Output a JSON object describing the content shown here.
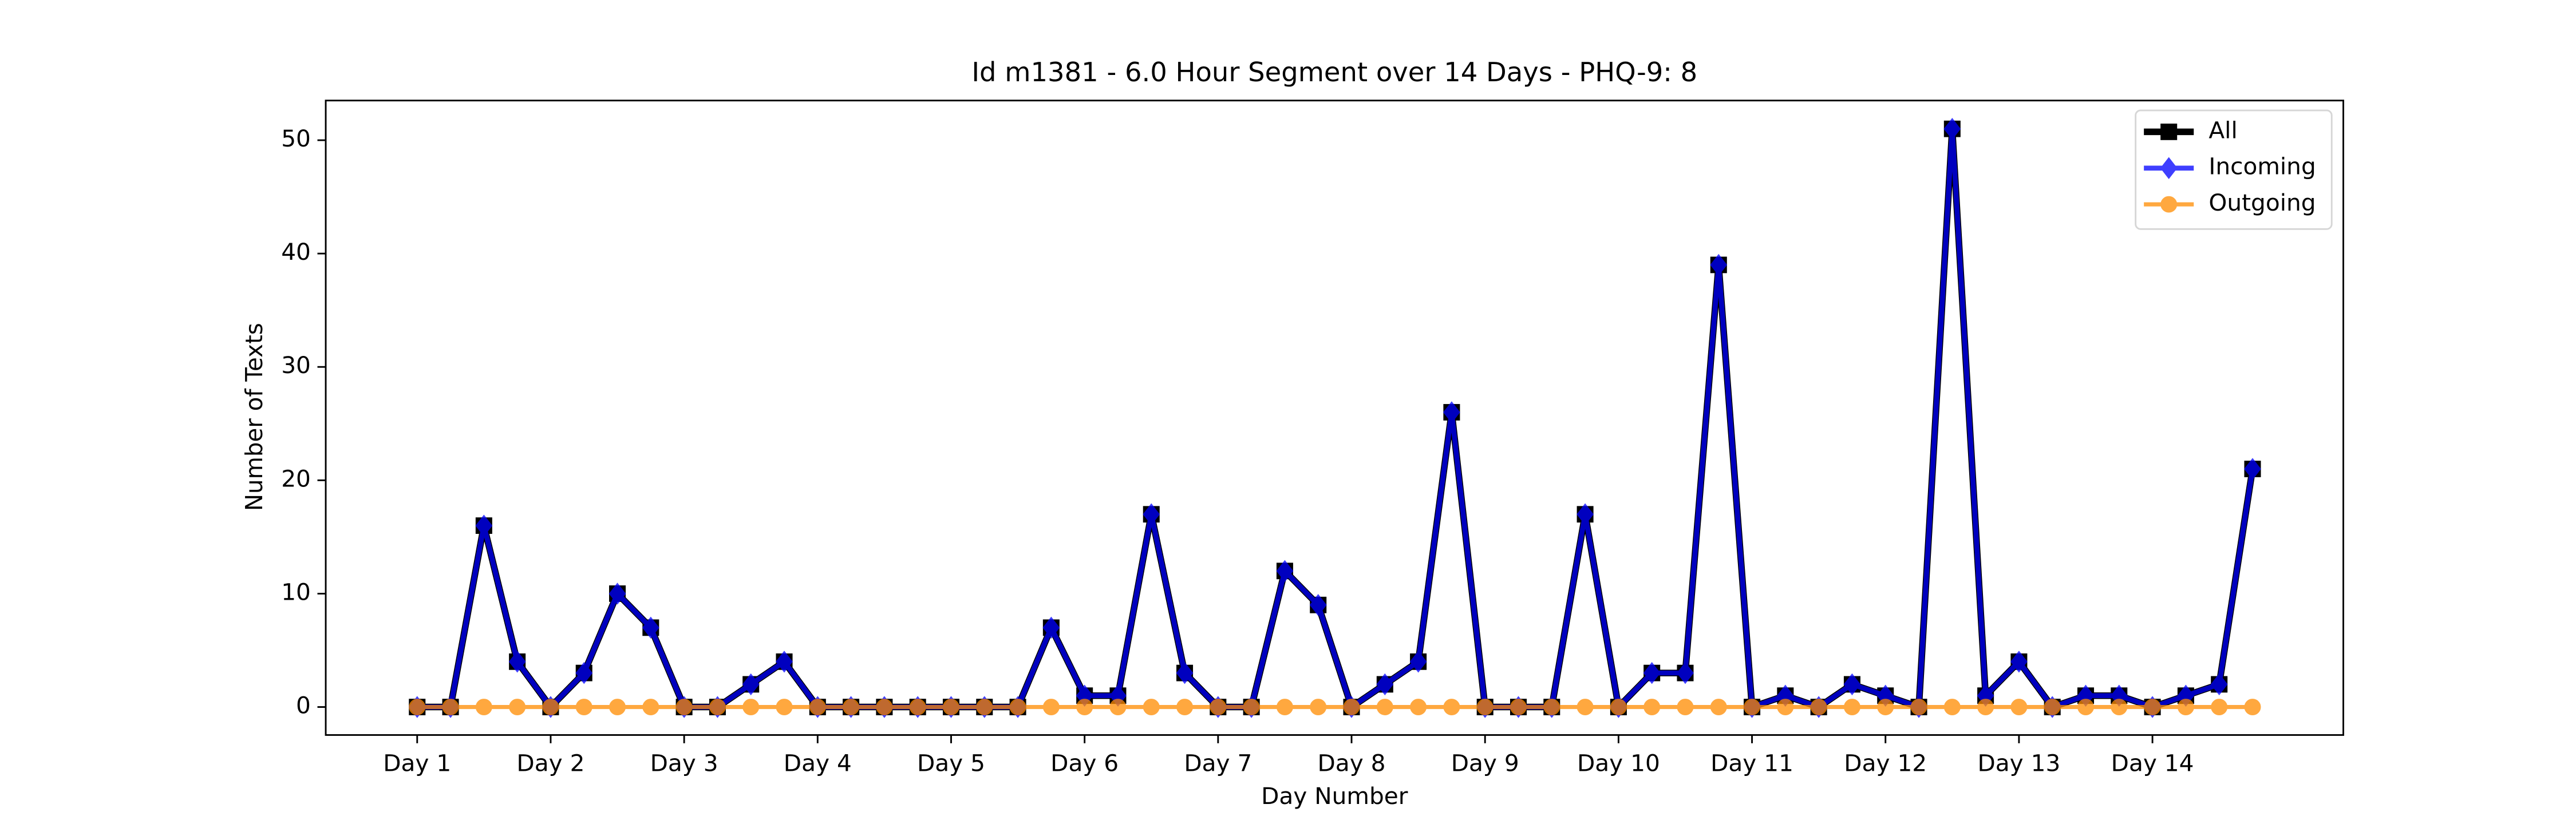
{
  "chart_data": {
    "type": "line",
    "title": "Id m1381 - 6.0 Hour Segment over 14 Days - PHQ-9: 8",
    "xlabel": "Day Number",
    "ylabel": "Number of Texts",
    "x": [
      0,
      0.25,
      0.5,
      0.75,
      1,
      1.25,
      1.5,
      1.75,
      2,
      2.25,
      2.5,
      2.75,
      3,
      3.25,
      3.5,
      3.75,
      4,
      4.25,
      4.5,
      4.75,
      5,
      5.25,
      5.5,
      5.75,
      6,
      6.25,
      6.5,
      6.75,
      7,
      7.25,
      7.5,
      7.75,
      8,
      8.25,
      8.5,
      8.75,
      9,
      9.25,
      9.5,
      9.75,
      10,
      10.25,
      10.5,
      10.75,
      11,
      11.25,
      11.5,
      11.75,
      12,
      12.25,
      12.5,
      12.75,
      13,
      13.25,
      13.5,
      13.75
    ],
    "series": [
      {
        "name": "All",
        "color": "#000000",
        "marker": "square",
        "values": [
          0,
          0,
          16,
          4,
          0,
          3,
          10,
          7,
          0,
          0,
          2,
          4,
          0,
          0,
          0,
          0,
          0,
          0,
          0,
          7,
          1,
          1,
          17,
          3,
          0,
          0,
          12,
          9,
          0,
          2,
          4,
          26,
          0,
          0,
          0,
          17,
          0,
          3,
          3,
          39,
          0,
          1,
          0,
          2,
          1,
          0,
          51,
          1,
          4,
          0,
          1,
          1,
          0,
          1,
          2,
          21
        ]
      },
      {
        "name": "Incoming",
        "color": "#0000ff",
        "marker": "diamond",
        "values": [
          0,
          0,
          16,
          4,
          0,
          3,
          10,
          7,
          0,
          0,
          2,
          4,
          0,
          0,
          0,
          0,
          0,
          0,
          0,
          7,
          1,
          1,
          17,
          3,
          0,
          0,
          12,
          9,
          0,
          2,
          4,
          26,
          0,
          0,
          0,
          17,
          0,
          3,
          3,
          39,
          0,
          1,
          0,
          2,
          1,
          0,
          51,
          1,
          4,
          0,
          1,
          1,
          0,
          1,
          2,
          21
        ]
      },
      {
        "name": "Outgoing",
        "color": "#ff8c00",
        "marker": "circle",
        "values": [
          0,
          0,
          0,
          0,
          0,
          0,
          0,
          0,
          0,
          0,
          0,
          0,
          0,
          0,
          0,
          0,
          0,
          0,
          0,
          0,
          0,
          0,
          0,
          0,
          0,
          0,
          0,
          0,
          0,
          0,
          0,
          0,
          0,
          0,
          0,
          0,
          0,
          0,
          0,
          0,
          0,
          0,
          0,
          0,
          0,
          0,
          0,
          0,
          0,
          0,
          0,
          0,
          0,
          0,
          0,
          0
        ]
      }
    ],
    "xlim": [
      -0.685,
      14.43
    ],
    "xticks": [
      {
        "value": 0,
        "label": "Day 1"
      },
      {
        "value": 1,
        "label": "Day 2"
      },
      {
        "value": 2,
        "label": "Day 3"
      },
      {
        "value": 3,
        "label": "Day 4"
      },
      {
        "value": 4,
        "label": "Day 5"
      },
      {
        "value": 5,
        "label": "Day 6"
      },
      {
        "value": 6,
        "label": "Day 7"
      },
      {
        "value": 7,
        "label": "Day 8"
      },
      {
        "value": 8,
        "label": "Day 9"
      },
      {
        "value": 9,
        "label": "Day 10"
      },
      {
        "value": 10,
        "label": "Day 11"
      },
      {
        "value": 11,
        "label": "Day 12"
      },
      {
        "value": 12,
        "label": "Day 13"
      },
      {
        "value": 13,
        "label": "Day 14"
      }
    ],
    "ylim": [
      -2.47,
      53.5
    ],
    "yticks": [
      0,
      10,
      20,
      30,
      40,
      50
    ],
    "legend": "upper right"
  }
}
